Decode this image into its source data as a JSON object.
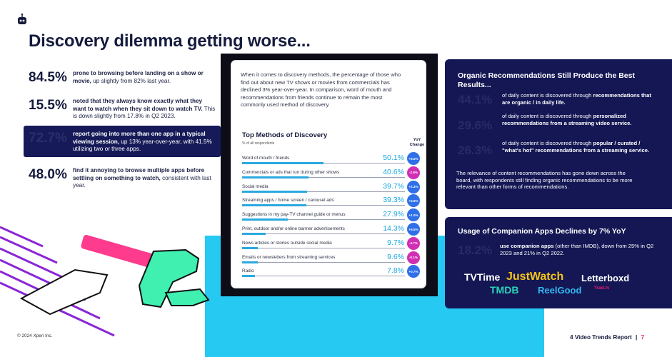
{
  "header": {
    "logo_icon": "robot-icon",
    "title": "Discovery dilemma getting worse..."
  },
  "left_stats": [
    {
      "number": "84.5%",
      "bold": "prone to browsing before landing on a show or movie,",
      "rest": " up slightly from 82% last year."
    },
    {
      "number": "15.5%",
      "bold": "noted that they always know exactly what they want to watch when they sit down to watch TV.",
      "rest": " This is down slightly from 17.8% in Q2 2023."
    },
    {
      "number": "72.7%",
      "bold": "report going into more than one app in a typical viewing session,",
      "rest": " up 13% year-over-year, with 41.5% utilizing two or three apps."
    },
    {
      "number": "48.0%",
      "bold": "find it annoying to browse multiple apps before settling on something to watch,",
      "rest": " consistent with last year."
    }
  ],
  "document": {
    "intro": "When it comes to discovery methods, the percentage of those who find out about new TV shows or movies from commercials has declined 3% year-over-year. In comparison, word of mouth and recommendations from friends continue to remain the most commonly used method of discovery.",
    "chart_title": "Top Methods of Discovery",
    "chart_subtitle": "% of all respondents",
    "yoy_header": "YoY Change"
  },
  "chart_data": {
    "type": "bar",
    "title": "Top Methods of Discovery",
    "subtitle": "% of all respondents",
    "categories": [
      "Word of mouth / friends",
      "Commercials or ads that run during other shows",
      "Social media",
      "Streaming apps / home screen / carousel ads",
      "Suggestions in my pay-TV channel guide or menus",
      "Print, outdoor and/or online banner advertisements",
      "News articles or stories outside social media",
      "Emails or newsletters from streaming services",
      "Radio"
    ],
    "values": [
      50.1,
      40.6,
      39.7,
      39.3,
      27.9,
      14.3,
      9.7,
      9.6,
      7.8
    ],
    "value_labels": [
      "50.1%",
      "40.6%",
      "39.7%",
      "39.3%",
      "27.9%",
      "14.3%",
      "9.7%",
      "9.6%",
      "7.8%"
    ],
    "yoy_change": [
      "+6.5%",
      "-2.8%",
      "+2.3%",
      "+5.9%",
      "+1.0%",
      "+6.5%",
      "-4.7%",
      "-0.1%",
      "+0.7%"
    ],
    "xlim": [
      0,
      100
    ],
    "colors": {
      "bar": "#2aa9e0",
      "positive": "#2f6fe8",
      "negative": "#d02fb3"
    }
  },
  "organic": {
    "title": "Organic Recommendations Still Produce the Best Results...",
    "items": [
      {
        "number": "44.1%",
        "plain": "of daily content is discovered through ",
        "bold": "recommendations that are organic / in daily life."
      },
      {
        "number": "29.6%",
        "plain": "of daily content is discovered through ",
        "bold": "personalized recommendations from a streaming video service."
      },
      {
        "number": "26.3%",
        "plain": "of daily content is discovered through ",
        "bold": "popular / curated / \"what's hot\" recommendations from a streaming service."
      }
    ],
    "footer": "The relevance of content recommendations has gone down across the board, with respondents still finding organic recommendations to be more relevant than other forms of recommendations."
  },
  "companion": {
    "title": "Usage of Companion Apps Declines by 7% YoY",
    "number": "18.2%",
    "bold": "use companion apps",
    "rest": " (other than IMDB), down from 25% in Q2 2023 and 21% in Q2 2022.",
    "brands": [
      {
        "name": "TVTime",
        "color": "#ffffff"
      },
      {
        "name": "JustWatch",
        "color": "#f5c518"
      },
      {
        "name": "Letterboxd",
        "color": "#ffffff"
      },
      {
        "name": "TMDB",
        "color": "#28d4b8"
      },
      {
        "name": "ReelGood",
        "color": "#32b9f0"
      },
      {
        "name": "Trakt.tv",
        "color": "#ed1c6f"
      }
    ]
  },
  "footer": {
    "copyright": "© 2024 Xperi Inc.",
    "report": "4 Video Trends Report",
    "separator": "|",
    "page": "7"
  }
}
